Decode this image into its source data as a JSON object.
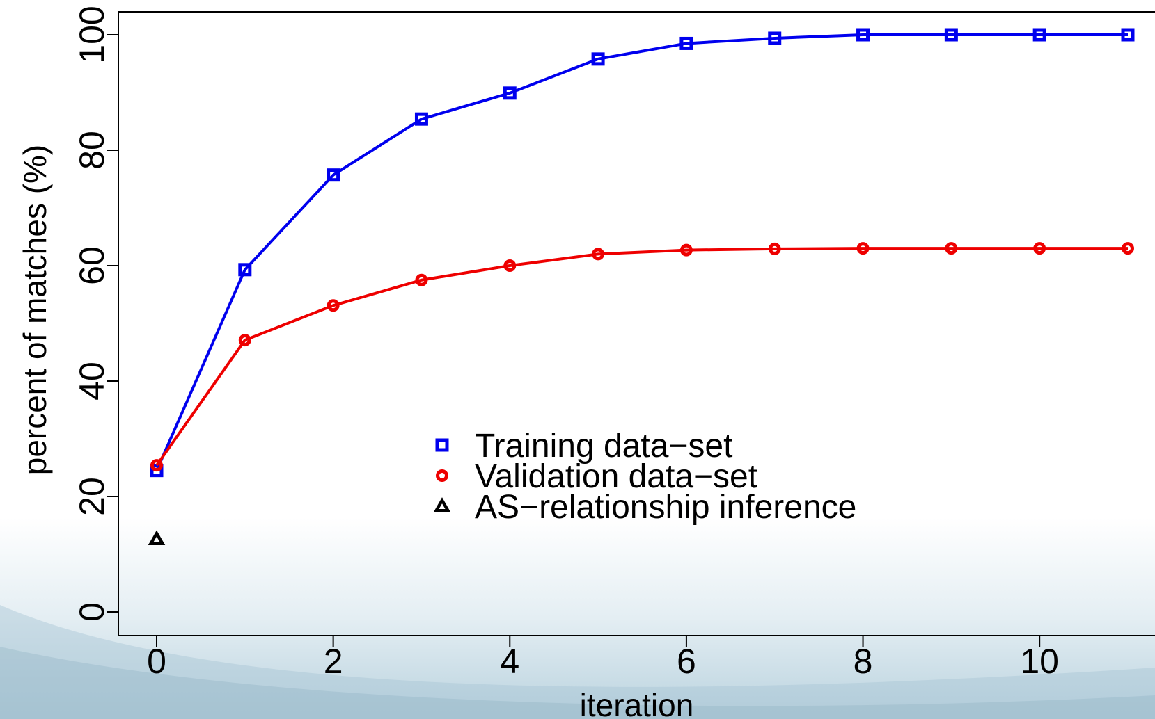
{
  "chart_data": {
    "type": "line",
    "title": "",
    "xlabel": "iteration",
    "ylabel": "percent of matches (%)",
    "xlim": [
      0,
      11
    ],
    "ylim": [
      0,
      100
    ],
    "x_ticks": [
      0,
      2,
      4,
      6,
      8,
      10
    ],
    "y_ticks": [
      0,
      20,
      40,
      60,
      80,
      100
    ],
    "x": [
      0,
      1,
      2,
      3,
      4,
      5,
      6,
      7,
      8,
      9,
      10,
      11
    ],
    "grid": false,
    "legend_position": "center",
    "series": [
      {
        "name": "Training data−set",
        "color": "#0000ee",
        "marker": "square",
        "values": [
          24.5,
          59.3,
          75.7,
          85.4,
          89.9,
          95.8,
          98.5,
          99.4,
          100,
          100,
          100,
          100
        ]
      },
      {
        "name": "Validation data−set",
        "color": "#ee0000",
        "marker": "circle",
        "values": [
          25.4,
          47.1,
          53.1,
          57.5,
          60.0,
          62.0,
          62.7,
          62.9,
          63.0,
          63.0,
          63.0,
          63.0
        ]
      },
      {
        "name": "AS−relationship inference",
        "color": "#000000",
        "marker": "triangle",
        "x": [
          0
        ],
        "values": [
          12.6
        ]
      }
    ]
  }
}
